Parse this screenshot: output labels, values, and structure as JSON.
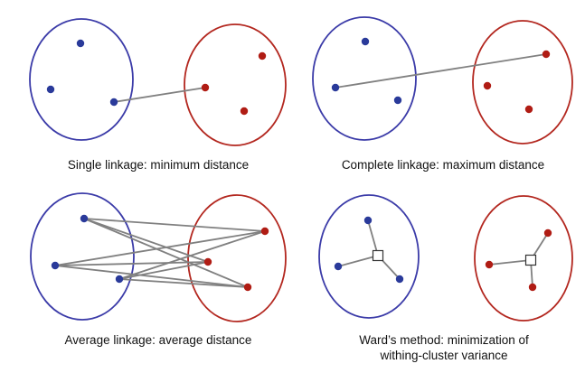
{
  "colors": {
    "cluster_a": "#3b3ba8",
    "cluster_b": "#b3271f",
    "point_a": "#2a3a9a",
    "point_b": "#b01c14",
    "link": "#808080",
    "text": "#111111"
  },
  "panels": [
    {
      "id": "single",
      "caption_lines": [
        "Single linkage: minimum distance"
      ]
    },
    {
      "id": "complete",
      "caption_lines": [
        "Complete linkage: maximum distance"
      ]
    },
    {
      "id": "average",
      "caption_lines": [
        "Average linkage: average distance"
      ]
    },
    {
      "id": "ward",
      "caption_lines": [
        "Ward’s method: minimization of",
        "withing-cluster variance"
      ]
    }
  ]
}
